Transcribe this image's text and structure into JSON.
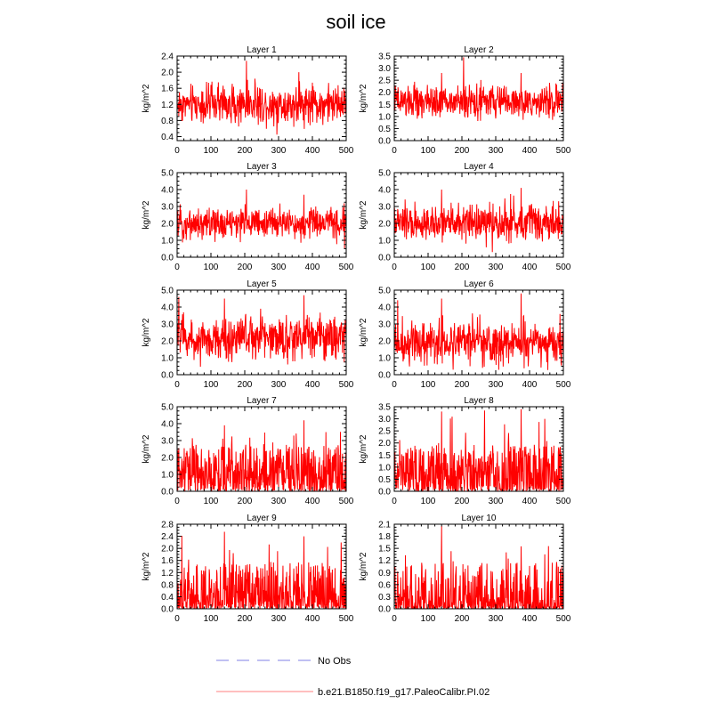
{
  "chart_data": {
    "type": "line",
    "title": "soil ice",
    "ylabel": "kg/m^2",
    "xlim": [
      0,
      500
    ],
    "xticks": [
      0,
      100,
      200,
      300,
      400,
      500
    ],
    "series_names": [
      "No Obs",
      "b.e21.B1850.f19_g17.PaleoCalibr.PI.02"
    ],
    "colors": {
      "model": "#ff0000",
      "obs": "#aaaaee"
    },
    "panels": [
      {
        "title": "Layer 1",
        "ylim": [
          0.3,
          2.4
        ],
        "yticks": [
          "0.4",
          "0.8",
          "1.2",
          "1.6",
          "2.0",
          "2.4"
        ],
        "yvals": [
          0.4,
          0.8,
          1.2,
          1.6,
          2.0,
          2.4
        ],
        "mean": 1.2,
        "amp": 0.35,
        "skew": 0,
        "peaks": [
          [
            205,
            2.28
          ],
          [
            295,
            0.45
          ],
          [
            360,
            2.0
          ]
        ]
      },
      {
        "title": "Layer 2",
        "ylim": [
          0,
          3.5
        ],
        "yticks": [
          "0.0",
          "0.5",
          "1.0",
          "1.5",
          "2.0",
          "2.5",
          "3.0",
          "3.5"
        ],
        "yvals": [
          0,
          0.5,
          1,
          1.5,
          2,
          2.5,
          3,
          3.5
        ],
        "mean": 1.6,
        "amp": 0.5,
        "skew": 0,
        "peaks": [
          [
            205,
            3.45
          ],
          [
            375,
            2.8
          ],
          [
            140,
            2.8
          ]
        ]
      },
      {
        "title": "Layer 3",
        "ylim": [
          0,
          5
        ],
        "yticks": [
          "0.0",
          "1.0",
          "2.0",
          "3.0",
          "4.0",
          "5.0"
        ],
        "yvals": [
          0,
          1,
          2,
          3,
          4,
          5
        ],
        "mean": 2.0,
        "amp": 0.7,
        "skew": 0,
        "peaks": [
          [
            205,
            4.0
          ],
          [
            375,
            3.7
          ],
          [
            495,
            0.5
          ]
        ]
      },
      {
        "title": "Layer 4",
        "ylim": [
          0,
          5
        ],
        "yticks": [
          "0.0",
          "1.0",
          "2.0",
          "3.0",
          "4.0",
          "5.0"
        ],
        "yvals": [
          0,
          1,
          2,
          3,
          4,
          5
        ],
        "mean": 2.0,
        "amp": 0.8,
        "skew": 0,
        "peaks": [
          [
            375,
            4.1
          ],
          [
            140,
            4.0
          ],
          [
            290,
            0.3
          ]
        ]
      },
      {
        "title": "Layer 5",
        "ylim": [
          0,
          5
        ],
        "yticks": [
          "0.0",
          "1.0",
          "2.0",
          "3.0",
          "4.0",
          "5.0"
        ],
        "yvals": [
          0,
          1,
          2,
          3,
          4,
          5
        ],
        "mean": 2.2,
        "amp": 1.0,
        "skew": 0,
        "peaks": [
          [
            375,
            4.7
          ],
          [
            5,
            4.6
          ],
          [
            140,
            4.5
          ]
        ]
      },
      {
        "title": "Layer 6",
        "ylim": [
          0,
          5
        ],
        "yticks": [
          "0.0",
          "1.0",
          "2.0",
          "3.0",
          "4.0",
          "5.0"
        ],
        "yvals": [
          0,
          1,
          2,
          3,
          4,
          5
        ],
        "mean": 1.9,
        "amp": 1.0,
        "skew": 0,
        "peaks": [
          [
            375,
            4.8
          ],
          [
            140,
            4.5
          ],
          [
            10,
            4.4
          ]
        ]
      },
      {
        "title": "Layer 7",
        "ylim": [
          0,
          5
        ],
        "yticks": [
          "0.0",
          "1.0",
          "2.0",
          "3.0",
          "4.0",
          "5.0"
        ],
        "yvals": [
          0,
          1,
          2,
          3,
          4,
          5
        ],
        "mean": 1.2,
        "amp": 1.0,
        "skew": 1.6,
        "peaks": [
          [
            375,
            4.2
          ],
          [
            140,
            3.9
          ],
          [
            440,
            3.5
          ]
        ]
      },
      {
        "title": "Layer 8",
        "ylim": [
          0,
          3.5
        ],
        "yticks": [
          "0.0",
          "0.5",
          "1.0",
          "1.5",
          "2.0",
          "2.5",
          "3.0",
          "3.5"
        ],
        "yvals": [
          0,
          0.5,
          1,
          1.5,
          2,
          2.5,
          3,
          3.5
        ],
        "mean": 0.8,
        "amp": 0.7,
        "skew": 1.8,
        "peaks": [
          [
            375,
            3.4
          ],
          [
            140,
            3.3
          ],
          [
            445,
            3.0
          ]
        ]
      },
      {
        "title": "Layer 9",
        "ylim": [
          0,
          2.8
        ],
        "yticks": [
          "0.0",
          "0.4",
          "0.8",
          "1.2",
          "1.6",
          "2.0",
          "2.4",
          "2.8"
        ],
        "yvals": [
          0,
          0.4,
          0.8,
          1.2,
          1.6,
          2.0,
          2.4,
          2.8
        ],
        "mean": 0.45,
        "amp": 0.5,
        "skew": 2.4,
        "peaks": [
          [
            140,
            2.55
          ],
          [
            375,
            2.4
          ],
          [
            445,
            2.05
          ]
        ]
      },
      {
        "title": "Layer 10",
        "ylim": [
          0,
          2.1
        ],
        "yticks": [
          "0.0",
          "0.3",
          "0.6",
          "0.9",
          "1.2",
          "1.5",
          "1.8",
          "2.1"
        ],
        "yvals": [
          0,
          0.3,
          0.6,
          0.9,
          1.2,
          1.5,
          1.8,
          2.1
        ],
        "mean": 0.12,
        "amp": 0.25,
        "skew": 3.5,
        "peaks": [
          [
            140,
            2.05
          ],
          [
            375,
            1.55
          ],
          [
            445,
            1.35
          ]
        ]
      }
    ]
  }
}
